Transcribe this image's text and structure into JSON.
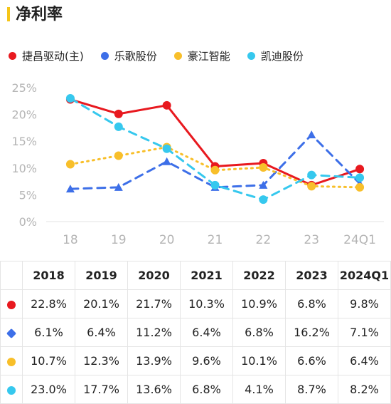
{
  "title": "净利率",
  "colors": {
    "accent_bar": "#f5c518"
  },
  "chart_data": {
    "type": "line",
    "categories": [
      "18",
      "19",
      "20",
      "21",
      "22",
      "23",
      "24Q1"
    ],
    "ylim": [
      0,
      25
    ],
    "yticks": [
      "0%",
      "5%",
      "10%",
      "15%",
      "20%",
      "25%"
    ],
    "ytick_values": [
      0,
      5,
      10,
      15,
      20,
      25
    ],
    "grid": false,
    "legend_position": "top-left",
    "series": [
      {
        "name": "捷昌驱动(主)",
        "color": "#e8191f",
        "line_style": "solid",
        "marker": "circle",
        "values": [
          22.8,
          20.1,
          21.7,
          10.3,
          10.9,
          6.8,
          9.8
        ]
      },
      {
        "name": "乐歌股份",
        "color": "#3d6fe8",
        "line_style": "dashed",
        "marker": "triangle",
        "values": [
          6.1,
          6.4,
          11.2,
          6.4,
          6.8,
          16.2,
          7.1
        ]
      },
      {
        "name": "豪江智能",
        "color": "#f8bf2a",
        "line_style": "dotted",
        "marker": "circle",
        "values": [
          10.7,
          12.3,
          13.9,
          9.6,
          10.1,
          6.6,
          6.4
        ]
      },
      {
        "name": "凯迪股份",
        "color": "#36c8ee",
        "line_style": "dashed",
        "marker": "circle",
        "values": [
          23.0,
          17.7,
          13.6,
          6.8,
          4.1,
          8.7,
          8.2
        ]
      }
    ]
  },
  "table": {
    "headers": [
      "",
      "2018",
      "2019",
      "2020",
      "2021",
      "2022",
      "2023",
      "2024Q1"
    ],
    "rows": [
      {
        "marker_color": "#e8191f",
        "marker_shape": "circle",
        "cells": [
          "22.8%",
          "20.1%",
          "21.7%",
          "10.3%",
          "10.9%",
          "6.8%",
          "9.8%"
        ]
      },
      {
        "marker_color": "#3d6fe8",
        "marker_shape": "diamond",
        "cells": [
          "6.1%",
          "6.4%",
          "11.2%",
          "6.4%",
          "6.8%",
          "16.2%",
          "7.1%"
        ]
      },
      {
        "marker_color": "#f8bf2a",
        "marker_shape": "circle",
        "cells": [
          "10.7%",
          "12.3%",
          "13.9%",
          "9.6%",
          "10.1%",
          "6.6%",
          "6.4%"
        ]
      },
      {
        "marker_color": "#36c8ee",
        "marker_shape": "circle",
        "cells": [
          "23.0%",
          "17.7%",
          "13.6%",
          "6.8%",
          "4.1%",
          "8.7%",
          "8.2%"
        ]
      }
    ]
  }
}
